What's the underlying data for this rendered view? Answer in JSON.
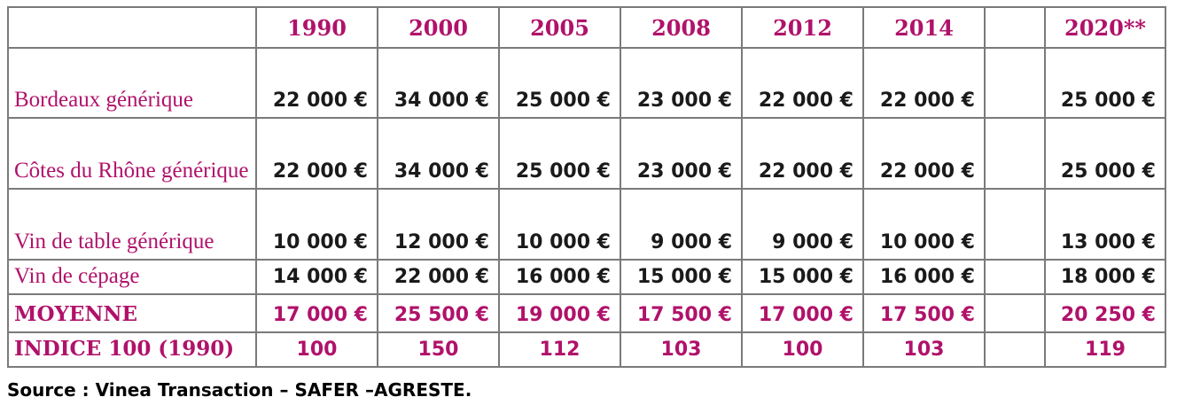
{
  "header": {
    "years": [
      "1990",
      "2000",
      "2005",
      "2008",
      "2012",
      "2014",
      "",
      "2020**"
    ]
  },
  "rows": [
    {
      "label": "Bordeaux générique",
      "values": [
        "22 000 €",
        "34 000 €",
        "25 000 €",
        "23 000 €",
        "22 000 €",
        "22 000 €",
        "",
        "25 000 €"
      ]
    },
    {
      "label": "Côtes du Rhône générique",
      "values": [
        "22 000 €",
        "34 000 €",
        "25 000 €",
        "23 000 €",
        "22 000 €",
        "22 000 €",
        "",
        "25 000 €"
      ]
    },
    {
      "label": "Vin de table générique",
      "values": [
        "10 000 €",
        "12 000 €",
        "10 000 €",
        "9 000 €",
        "9 000 €",
        "10 000 €",
        "",
        "13 000 €"
      ]
    },
    {
      "label": "Vin de cépage",
      "values": [
        "14 000 €",
        "22 000 €",
        "16 000 €",
        "15 000 €",
        "15 000 €",
        "16 000 €",
        "",
        "18 000 €"
      ]
    },
    {
      "label": "MOYENNE",
      "values": [
        "17 000 €",
        "25 500 €",
        "19 000 €",
        "17 500 €",
        "17 000 €",
        "17 500 €",
        "",
        "20 250 €"
      ]
    },
    {
      "label": "INDICE 100 (1990)",
      "values": [
        "100",
        "150",
        "112",
        "103",
        "100",
        "103",
        "",
        "119"
      ]
    }
  ],
  "source": "Source : Vinea Transaction – SAFER –AGRESTE.",
  "colors": {
    "accent": "#b0126a",
    "border": "#7a7a7a"
  }
}
